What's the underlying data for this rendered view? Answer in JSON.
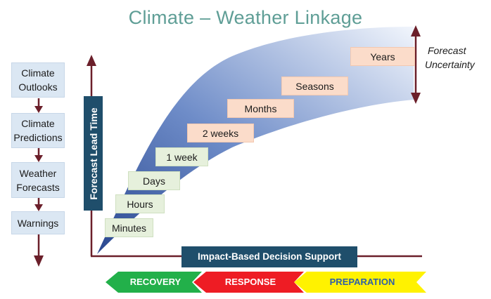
{
  "title": "Climate – Weather Linkage",
  "left_column": {
    "items": [
      {
        "line1": "Climate",
        "line2": "Outlooks"
      },
      {
        "line1": "Climate",
        "line2": "Predictions"
      },
      {
        "line1": "Weather",
        "line2": "Forecasts"
      },
      {
        "line1": "Warnings",
        "line2": ""
      }
    ]
  },
  "y_axis_label": "Forecast Lead Time",
  "timescales": [
    "Minutes",
    "Hours",
    "Days",
    "1 week",
    "2 weeks",
    "Months",
    "Seasons",
    "Years"
  ],
  "uncertainty_label": {
    "line1": "Forecast",
    "line2": "Uncertainty"
  },
  "decision_banner": "Impact-Based Decision Support",
  "phase_arrows": [
    {
      "label": "RECOVERY",
      "color": "#22b04a",
      "text_color": "#ffffff"
    },
    {
      "label": "RESPONSE",
      "color": "#ee1c24",
      "text_color": "#ffffff"
    },
    {
      "label": "PREPARATION",
      "color": "#fff200",
      "text_color": "#2e5fa8"
    }
  ],
  "colors": {
    "title": "#5f9e96",
    "axis": "#6b1f2a",
    "navy": "#1f4e6b",
    "wedge_dark": "#2f4d94",
    "wedge_light": "#eaf0fb"
  }
}
